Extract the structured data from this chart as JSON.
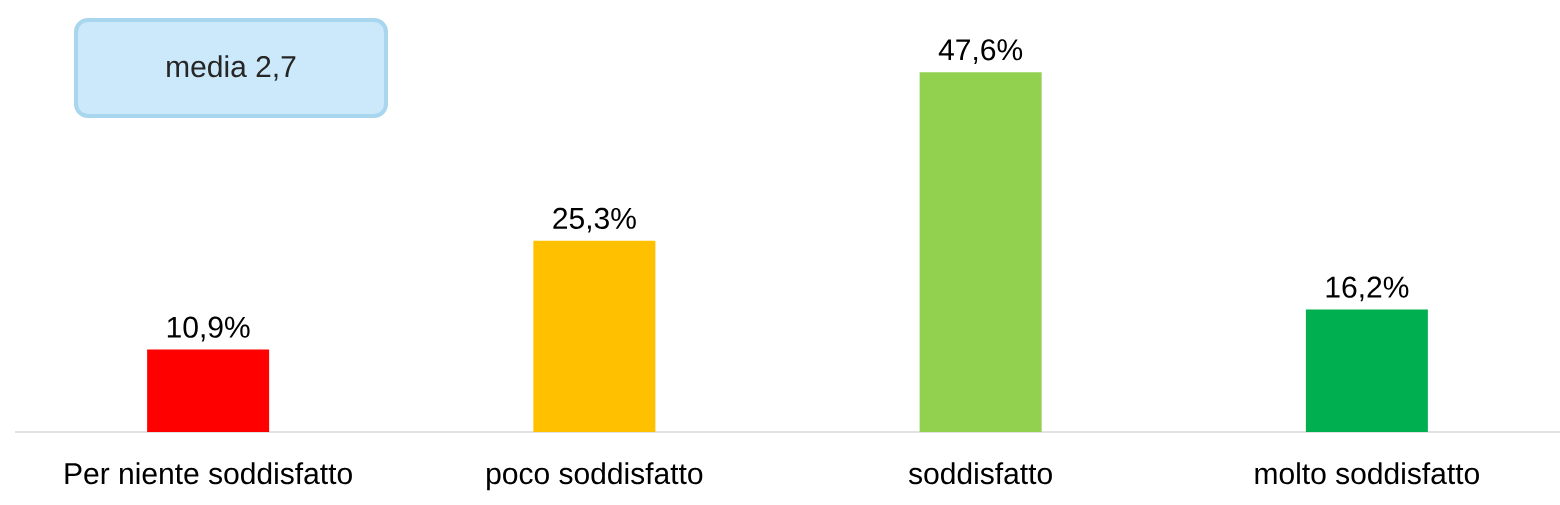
{
  "chart_data": {
    "type": "bar",
    "categories": [
      "Per niente soddisfatto",
      "poco soddisfatto",
      "soddisfatto",
      "molto soddisfatto"
    ],
    "values": [
      10.9,
      25.3,
      47.6,
      16.2
    ],
    "colors": [
      "#ff0000",
      "#ffc000",
      "#92d050",
      "#00b050"
    ],
    "value_labels": [
      "10,9%",
      "25,3%",
      "47,6%",
      "16,2%"
    ],
    "annotations": [
      "media 2,7"
    ],
    "grid": false
  }
}
